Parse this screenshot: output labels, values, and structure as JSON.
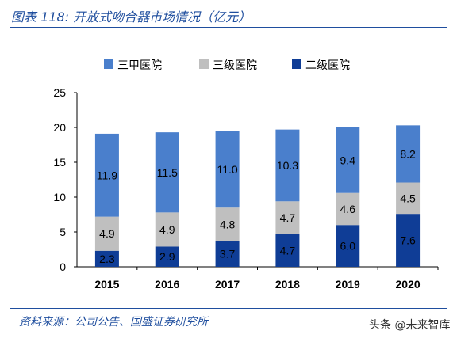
{
  "header": {
    "title": "图表 118:  开放式吻合器市场情况（亿元）"
  },
  "footer": {
    "source": "资料来源：公司公告、国盛证券研究所",
    "watermark": "头条 @未来智库"
  },
  "colors": {
    "tertiary": "#4a7fcc",
    "level3": "#bfbfbf",
    "level2": "#0f3d96",
    "accent": "#1f4e9e"
  },
  "chart_data": {
    "type": "bar",
    "stacked": true,
    "categories": [
      "2015",
      "2016",
      "2017",
      "2018",
      "2019",
      "2020"
    ],
    "series": [
      {
        "name": "二级医院",
        "values": [
          2.3,
          2.9,
          3.7,
          4.7,
          6.0,
          7.6
        ],
        "labels": [
          "2.3",
          "2.9",
          "3.7",
          "4.7",
          "6.0",
          "7.6"
        ],
        "color": "#0f3d96"
      },
      {
        "name": "三级医院",
        "values": [
          4.9,
          4.9,
          4.8,
          4.7,
          4.6,
          4.5
        ],
        "labels": [
          "4.9",
          "4.9",
          "4.8",
          "4.7",
          "4.6",
          "4.5"
        ],
        "color": "#bfbfbf"
      },
      {
        "name": "三甲医院",
        "values": [
          11.9,
          11.5,
          11.0,
          10.3,
          9.4,
          8.2
        ],
        "labels": [
          "11.9",
          "11.5",
          "11.0",
          "10.3",
          "9.4",
          "8.2"
        ],
        "color": "#4a7fcc"
      }
    ],
    "legend_order": [
      "三甲医院",
      "三级医院",
      "二级医院"
    ],
    "legend_placement": "top",
    "ylim": [
      0,
      25
    ],
    "yticks": [
      "0",
      "5",
      "10",
      "15",
      "20",
      "25"
    ],
    "grid": false
  }
}
